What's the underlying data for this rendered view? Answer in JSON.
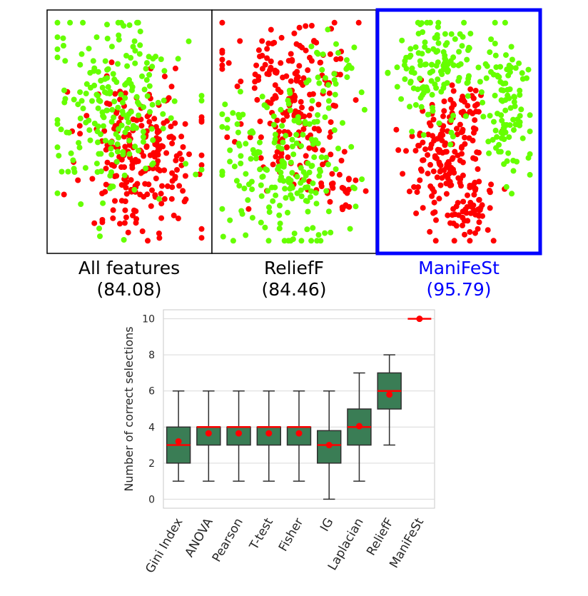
{
  "colors": {
    "class_a": "#ff0000",
    "class_b": "#66ff00",
    "highlight": "#0000ff",
    "box_fill": "#3a7d55",
    "box_edge": "#2f2f2f",
    "median": "#ff0000",
    "mean": "#ff0000",
    "grid": "#d9d9d9"
  },
  "chart_data": [
    {
      "type": "scatter",
      "title": "All features",
      "subtitle": "(84.08)",
      "highlighted": false,
      "series": [
        {
          "color": "red",
          "seed": 11,
          "blobs": [
            {
              "cx": 0.58,
              "cy": 0.62,
              "sx": 0.18,
              "sy": 0.17,
              "n": 230
            }
          ]
        },
        {
          "color": "green",
          "seed": 12,
          "blobs": [
            {
              "cx": 0.42,
              "cy": 0.38,
              "sx": 0.21,
              "sy": 0.22,
              "n": 210
            }
          ]
        }
      ]
    },
    {
      "type": "scatter",
      "title": "ReliefF",
      "subtitle": "(84.46)",
      "highlighted": false,
      "series": [
        {
          "color": "red",
          "seed": 21,
          "blobs": [
            {
              "cx": 0.48,
              "cy": 0.28,
              "sx": 0.2,
              "sy": 0.14,
              "n": 150
            },
            {
              "cx": 0.55,
              "cy": 0.62,
              "sx": 0.17,
              "sy": 0.1,
              "n": 60
            },
            {
              "cx": 0.83,
              "cy": 0.75,
              "sx": 0.05,
              "sy": 0.05,
              "n": 18
            }
          ]
        },
        {
          "color": "green",
          "seed": 22,
          "blobs": [
            {
              "cx": 0.45,
              "cy": 0.72,
              "sx": 0.2,
              "sy": 0.14,
              "n": 150
            },
            {
              "cx": 0.4,
              "cy": 0.45,
              "sx": 0.22,
              "sy": 0.1,
              "n": 50
            },
            {
              "cx": 0.75,
              "cy": 0.25,
              "sx": 0.1,
              "sy": 0.08,
              "n": 25
            }
          ]
        }
      ]
    },
    {
      "type": "scatter",
      "title": "ManiFeSt",
      "subtitle": "(95.79)",
      "highlighted": true,
      "series": [
        {
          "color": "red",
          "seed": 31,
          "blobs": [
            {
              "cx": 0.4,
              "cy": 0.6,
              "sx": 0.14,
              "sy": 0.13,
              "n": 140
            },
            {
              "cx": 0.53,
              "cy": 0.82,
              "sx": 0.12,
              "sy": 0.08,
              "n": 60
            },
            {
              "cx": 0.55,
              "cy": 0.38,
              "sx": 0.07,
              "sy": 0.06,
              "n": 25
            }
          ]
        },
        {
          "color": "green",
          "seed": 32,
          "blobs": [
            {
              "cx": 0.3,
              "cy": 0.25,
              "sx": 0.14,
              "sy": 0.13,
              "n": 110
            },
            {
              "cx": 0.8,
              "cy": 0.38,
              "sx": 0.09,
              "sy": 0.17,
              "n": 100
            },
            {
              "cx": 0.5,
              "cy": 0.18,
              "sx": 0.08,
              "sy": 0.06,
              "n": 20
            }
          ]
        }
      ]
    },
    {
      "type": "box",
      "ylabel": "Number of correct selections",
      "xlabel": "",
      "ylim": [
        -0.5,
        10.5
      ],
      "yticks": [
        0,
        2,
        4,
        6,
        8,
        10
      ],
      "grid": true,
      "categories": [
        "Gini Index",
        "ANOVA",
        "Pearson",
        "T-test",
        "Fisher",
        "IG",
        "Laplacian",
        "ReliefF",
        "ManiFeSt"
      ],
      "highlight_category": "ManiFeSt",
      "boxes": [
        {
          "whisker_low": 1,
          "q1": 2,
          "median": 3,
          "q3": 4,
          "whisker_high": 6,
          "mean": 3.2
        },
        {
          "whisker_low": 1,
          "q1": 3,
          "median": 4,
          "q3": 4,
          "whisker_high": 6,
          "mean": 3.65
        },
        {
          "whisker_low": 1,
          "q1": 3,
          "median": 4,
          "q3": 4,
          "whisker_high": 6,
          "mean": 3.65
        },
        {
          "whisker_low": 1,
          "q1": 3,
          "median": 4,
          "q3": 4,
          "whisker_high": 6,
          "mean": 3.65
        },
        {
          "whisker_low": 1,
          "q1": 3,
          "median": 4,
          "q3": 4,
          "whisker_high": 6,
          "mean": 3.65
        },
        {
          "whisker_low": 0,
          "q1": 2,
          "median": 3,
          "q3": 3.8,
          "whisker_high": 6,
          "mean": 3.0
        },
        {
          "whisker_low": 1,
          "q1": 3,
          "median": 4,
          "q3": 5,
          "whisker_high": 7,
          "mean": 4.05
        },
        {
          "whisker_low": 3,
          "q1": 5,
          "median": 6,
          "q3": 7,
          "whisker_high": 8,
          "mean": 5.8
        },
        {
          "whisker_low": 10,
          "q1": 10,
          "median": 10,
          "q3": 10,
          "whisker_high": 10,
          "mean": 10
        }
      ]
    }
  ]
}
